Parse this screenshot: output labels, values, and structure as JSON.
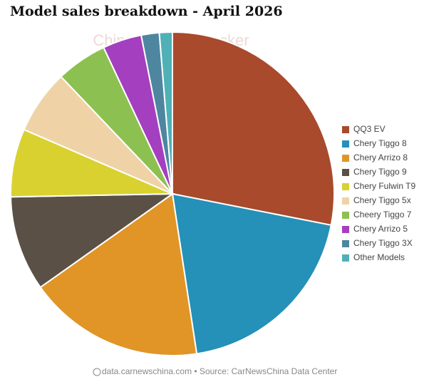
{
  "chart_data": {
    "type": "pie",
    "title": "Model sales breakdown - April 2026",
    "watermark": "China EV DataTracker",
    "footer": "data.carnewschina.com • Source: CarNewsChina Data Center",
    "categories": [
      "QQ3 EV",
      "Chery Tiggo 8",
      "Chery Arrizo 8",
      "Chery Tiggo 9",
      "Chery Fulwin T9",
      "Chery Tiggo 5x",
      "Cheery Tiggo 7",
      "Chery Arrizo 5",
      "Chery Tiggo 3X",
      "Other Models"
    ],
    "values": [
      28.1,
      19.5,
      17.6,
      9.5,
      6.8,
      6.4,
      5.1,
      3.9,
      1.8,
      1.3
    ],
    "colors": [
      "#a84a2b",
      "#2590b8",
      "#e09526",
      "#5a5045",
      "#d9d12f",
      "#efd3a6",
      "#8cc152",
      "#a43fbf",
      "#4e86a0",
      "#4fb1b6"
    ]
  }
}
